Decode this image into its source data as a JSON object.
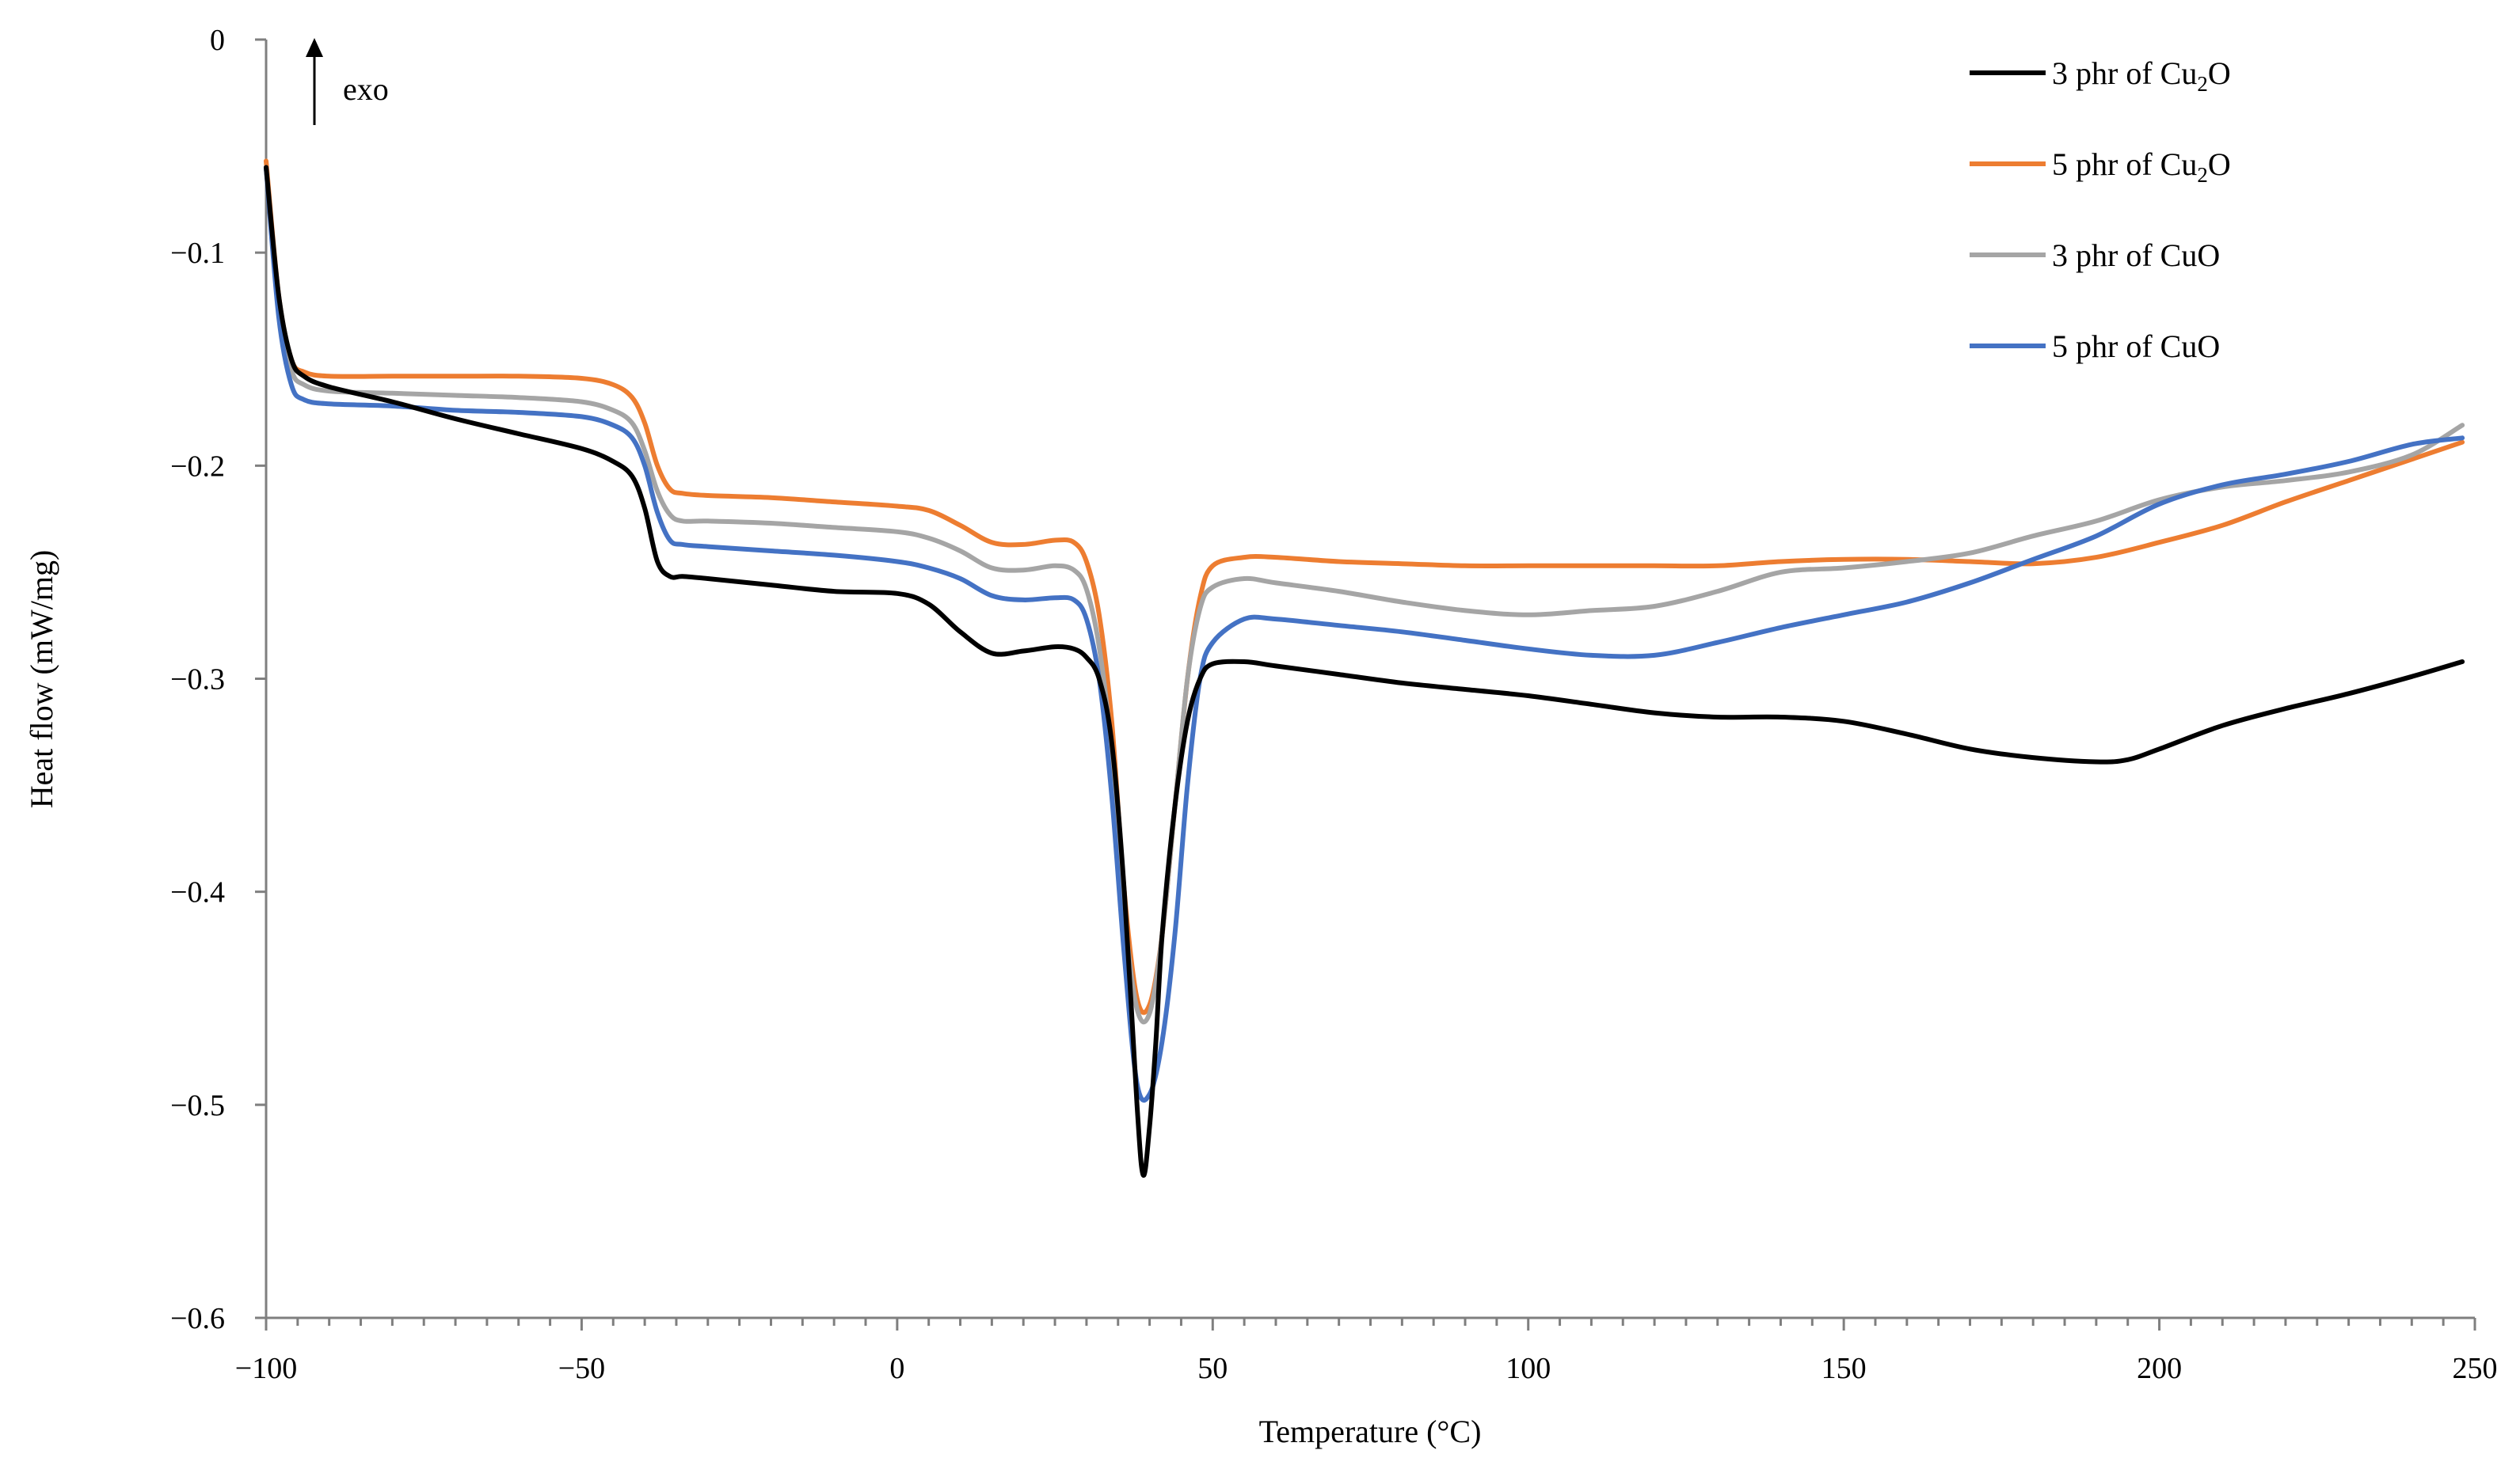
{
  "chart_data": {
    "type": "line",
    "title": "",
    "xlabel": "Temperature (°C)",
    "ylabel": "Heat flow (mW/mg)",
    "xlim": [
      -100,
      250
    ],
    "ylim": [
      -0.6,
      0
    ],
    "xticks": [
      -100,
      -50,
      0,
      50,
      100,
      150,
      200,
      250
    ],
    "xtick_labels": [
      "−100",
      "−50",
      "0",
      "50",
      "100",
      "150",
      "200",
      "250"
    ],
    "yticks": [
      0,
      -0.1,
      -0.2,
      -0.3,
      -0.4,
      -0.5,
      -0.6
    ],
    "ytick_labels": [
      "0",
      "−0.1",
      "−0.2",
      "−0.3",
      "−0.4",
      "−0.5",
      "−0.6"
    ],
    "grid": false,
    "legend_position": "top-right",
    "annotation": {
      "text": "exo",
      "arrow": "up"
    },
    "series": [
      {
        "name": "3 phr of Cu2O",
        "label_main": "3 phr of Cu",
        "label_sub": "2",
        "label_end": "O",
        "color": "#000000",
        "x": [
          -100,
          -98,
          -96,
          -94,
          -90,
          -80,
          -70,
          -60,
          -50,
          -45,
          -42,
          -40,
          -38,
          -36,
          -34,
          -30,
          -20,
          -10,
          0,
          5,
          10,
          15,
          20,
          25,
          28,
          30,
          32,
          34,
          36,
          38,
          39,
          40,
          41,
          42,
          44,
          46,
          48,
          50,
          55,
          60,
          70,
          80,
          90,
          100,
          110,
          120,
          130,
          140,
          150,
          160,
          170,
          180,
          190,
          195,
          200,
          210,
          220,
          230,
          240,
          248
        ],
        "y": [
          -0.06,
          -0.12,
          -0.15,
          -0.158,
          -0.163,
          -0.17,
          -0.178,
          -0.185,
          -0.192,
          -0.198,
          -0.205,
          -0.22,
          -0.245,
          -0.252,
          -0.252,
          -0.253,
          -0.256,
          -0.259,
          -0.26,
          -0.265,
          -0.278,
          -0.288,
          -0.287,
          -0.285,
          -0.286,
          -0.29,
          -0.3,
          -0.33,
          -0.4,
          -0.5,
          -0.533,
          -0.51,
          -0.47,
          -0.42,
          -0.36,
          -0.32,
          -0.3,
          -0.293,
          -0.292,
          -0.294,
          -0.298,
          -0.302,
          -0.305,
          -0.308,
          -0.312,
          -0.316,
          -0.318,
          -0.318,
          -0.32,
          -0.326,
          -0.333,
          -0.337,
          -0.339,
          -0.338,
          -0.333,
          -0.322,
          -0.314,
          -0.307,
          -0.299,
          -0.292
        ]
      },
      {
        "name": "5 phr of Cu2O",
        "label_main": "5 phr of Cu",
        "label_sub": "2",
        "label_end": "O",
        "color": "#ED7D31",
        "x": [
          -100,
          -98,
          -96,
          -94,
          -90,
          -80,
          -70,
          -60,
          -50,
          -45,
          -42,
          -40,
          -38,
          -36,
          -34,
          -30,
          -20,
          -10,
          0,
          5,
          10,
          15,
          20,
          25,
          28,
          30,
          32,
          34,
          36,
          38,
          40,
          42,
          44,
          46,
          48,
          50,
          55,
          60,
          70,
          80,
          90,
          100,
          110,
          120,
          130,
          140,
          150,
          160,
          170,
          180,
          190,
          200,
          210,
          220,
          230,
          240,
          248
        ],
        "y": [
          -0.057,
          -0.12,
          -0.15,
          -0.156,
          -0.158,
          -0.158,
          -0.158,
          -0.158,
          -0.159,
          -0.162,
          -0.168,
          -0.18,
          -0.2,
          -0.211,
          -0.213,
          -0.214,
          -0.215,
          -0.217,
          -0.219,
          -0.221,
          -0.228,
          -0.236,
          -0.237,
          -0.235,
          -0.236,
          -0.245,
          -0.27,
          -0.32,
          -0.4,
          -0.45,
          -0.453,
          -0.42,
          -0.36,
          -0.3,
          -0.262,
          -0.247,
          -0.243,
          -0.243,
          -0.245,
          -0.246,
          -0.247,
          -0.247,
          -0.247,
          -0.247,
          -0.247,
          -0.245,
          -0.244,
          -0.244,
          -0.245,
          -0.246,
          -0.243,
          -0.236,
          -0.228,
          -0.217,
          -0.207,
          -0.197,
          -0.189
        ]
      },
      {
        "name": "3 phr of CuO",
        "label_main": "3 phr of CuO",
        "label_sub": "",
        "label_end": "",
        "color": "#A5A5A5",
        "x": [
          -100,
          -98,
          -96,
          -94,
          -90,
          -80,
          -70,
          -60,
          -50,
          -45,
          -42,
          -40,
          -38,
          -36,
          -34,
          -30,
          -20,
          -10,
          0,
          5,
          10,
          15,
          20,
          25,
          28,
          30,
          32,
          34,
          36,
          38,
          40,
          42,
          44,
          46,
          48,
          50,
          55,
          60,
          70,
          80,
          90,
          100,
          110,
          120,
          130,
          140,
          150,
          160,
          170,
          180,
          190,
          200,
          210,
          220,
          230,
          240,
          248
        ],
        "y": [
          -0.06,
          -0.125,
          -0.155,
          -0.162,
          -0.165,
          -0.166,
          -0.167,
          -0.168,
          -0.17,
          -0.174,
          -0.18,
          -0.193,
          -0.212,
          -0.223,
          -0.226,
          -0.226,
          -0.227,
          -0.229,
          -0.231,
          -0.234,
          -0.24,
          -0.248,
          -0.249,
          -0.247,
          -0.249,
          -0.258,
          -0.285,
          -0.335,
          -0.41,
          -0.455,
          -0.457,
          -0.42,
          -0.36,
          -0.3,
          -0.267,
          -0.257,
          -0.253,
          -0.255,
          -0.259,
          -0.264,
          -0.268,
          -0.27,
          -0.268,
          -0.266,
          -0.259,
          -0.25,
          -0.248,
          -0.245,
          -0.241,
          -0.233,
          -0.226,
          -0.216,
          -0.21,
          -0.207,
          -0.203,
          -0.195,
          -0.181
        ]
      },
      {
        "name": "5 phr of CuO",
        "label_main": "5 phr of CuO",
        "label_sub": "",
        "label_end": "",
        "color": "#4472C4",
        "x": [
          -100,
          -98,
          -96,
          -94,
          -90,
          -80,
          -70,
          -60,
          -50,
          -45,
          -42,
          -40,
          -38,
          -36,
          -34,
          -30,
          -20,
          -10,
          0,
          5,
          10,
          15,
          20,
          25,
          28,
          30,
          32,
          34,
          36,
          38,
          40,
          42,
          44,
          46,
          48,
          50,
          55,
          60,
          70,
          80,
          90,
          100,
          110,
          120,
          130,
          140,
          150,
          160,
          170,
          180,
          190,
          200,
          210,
          220,
          230,
          240,
          248
        ],
        "y": [
          -0.06,
          -0.13,
          -0.162,
          -0.169,
          -0.171,
          -0.172,
          -0.174,
          -0.175,
          -0.177,
          -0.181,
          -0.187,
          -0.2,
          -0.222,
          -0.235,
          -0.237,
          -0.238,
          -0.24,
          -0.242,
          -0.245,
          -0.248,
          -0.253,
          -0.261,
          -0.263,
          -0.262,
          -0.263,
          -0.272,
          -0.3,
          -0.355,
          -0.43,
          -0.49,
          -0.495,
          -0.47,
          -0.42,
          -0.35,
          -0.3,
          -0.283,
          -0.272,
          -0.272,
          -0.275,
          -0.278,
          -0.282,
          -0.286,
          -0.289,
          -0.289,
          -0.283,
          -0.276,
          -0.27,
          -0.264,
          -0.255,
          -0.244,
          -0.233,
          -0.218,
          -0.209,
          -0.204,
          -0.198,
          -0.19,
          -0.187
        ]
      }
    ]
  }
}
